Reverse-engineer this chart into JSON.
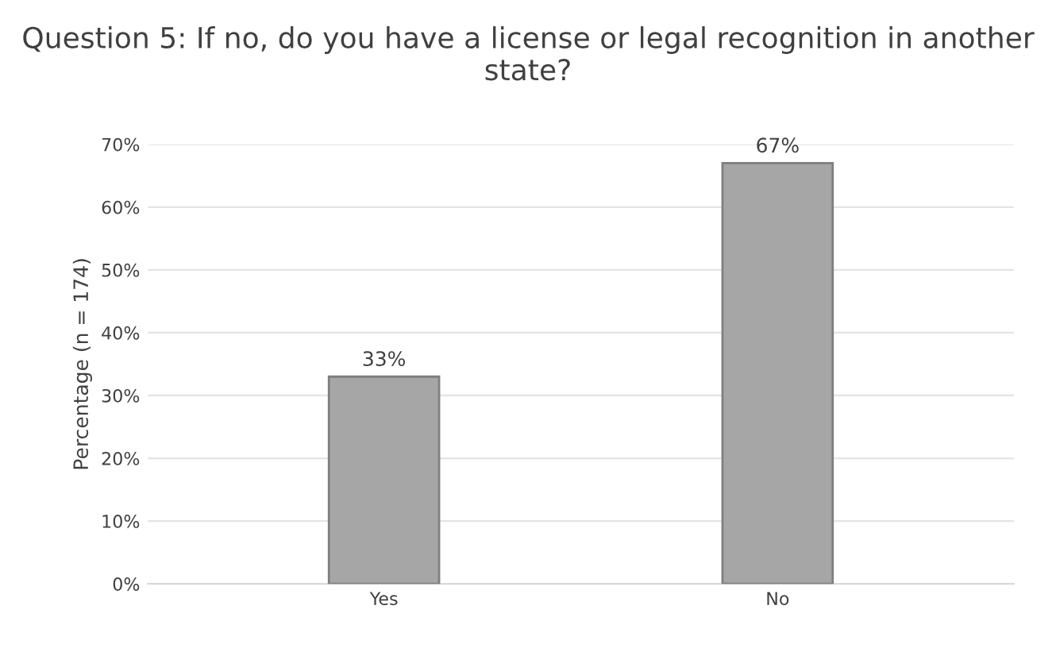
{
  "chart_data": {
    "type": "bar",
    "title": "Question 5: If no, do you have a license or legal recognition in another state?",
    "ylabel": "Percentage (n = 174)",
    "categories": [
      "Yes",
      "No"
    ],
    "values": [
      33,
      67
    ],
    "color": "#a6a6a6",
    "value_labels": [
      "33%",
      "67%"
    ],
    "ylim": [
      0,
      70
    ],
    "yticks": [
      {
        "value": 0,
        "label": "0%"
      },
      {
        "value": 10,
        "label": "10%"
      },
      {
        "value": 20,
        "label": "20%"
      },
      {
        "value": 30,
        "label": "30%"
      },
      {
        "value": 40,
        "label": "40%"
      },
      {
        "value": 50,
        "label": "50%"
      },
      {
        "value": 60,
        "label": "60%"
      },
      {
        "value": 70,
        "label": "70%"
      }
    ],
    "grid": "y"
  }
}
